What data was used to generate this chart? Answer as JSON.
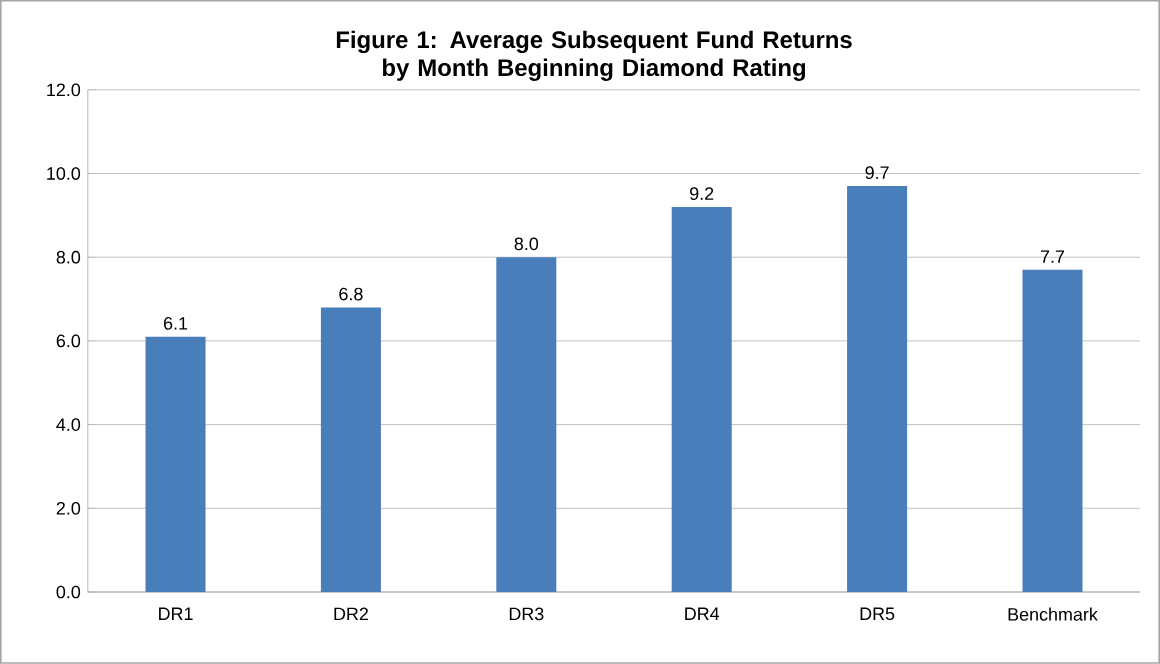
{
  "chart_data": {
    "type": "bar",
    "title": "Figure 1: Average Subsequent Fund Returns by Month Beginning Diamond Rating",
    "categories": [
      "DR1",
      "DR2",
      "DR3",
      "DR4",
      "DR5",
      "Benchmark"
    ],
    "values": [
      6.1,
      6.8,
      8.0,
      9.2,
      9.7,
      7.7
    ],
    "color": "#4a7ebb",
    "value_labels": [
      "6.1",
      "6.8",
      "8.0",
      "9.2",
      "9.7",
      "7.7"
    ],
    "ylim": [
      0,
      12
    ],
    "yticks": [
      {
        "value": 0,
        "label": "0.0"
      },
      {
        "value": 2,
        "label": "2.0"
      },
      {
        "value": 4,
        "label": "4.0"
      },
      {
        "value": 6,
        "label": "6.0"
      },
      {
        "value": 8,
        "label": "8.0"
      },
      {
        "value": 10,
        "label": "10.0"
      },
      {
        "value": 12,
        "label": "12.0"
      }
    ],
    "grid": "y"
  }
}
